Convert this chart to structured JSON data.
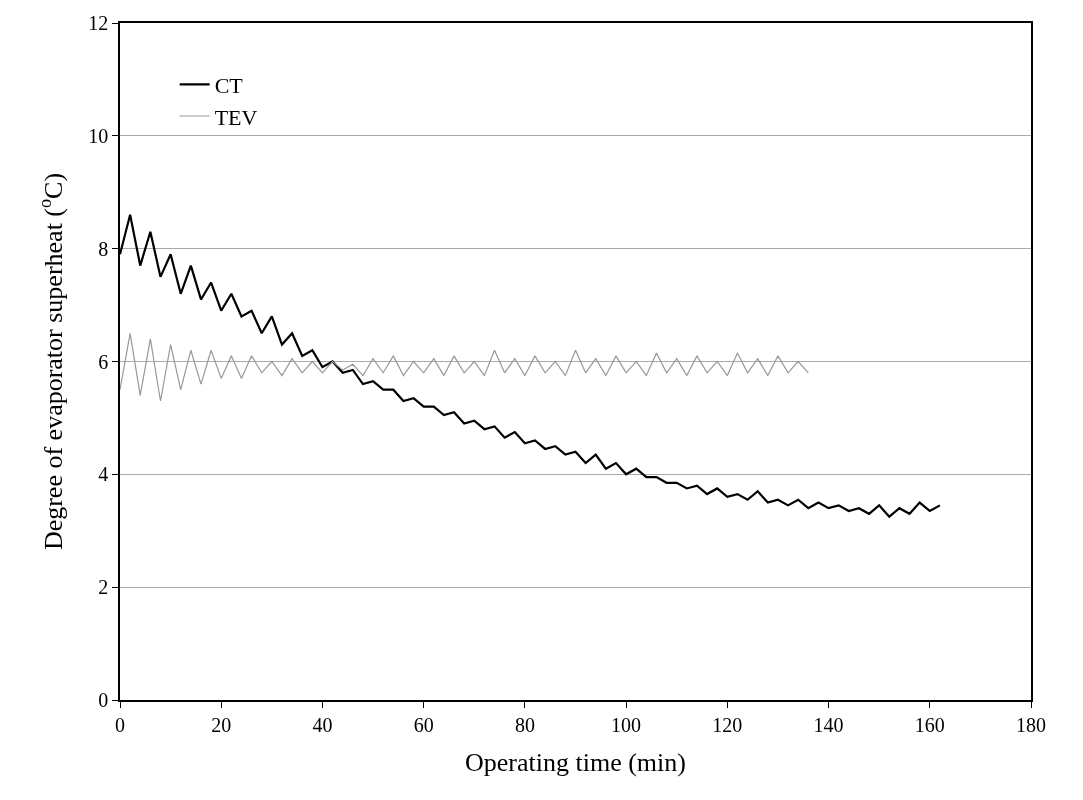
{
  "chart_data": {
    "type": "line",
    "xlabel": "Operating time (min)",
    "ylabel": "Degree of evaporator superheat ($^{o}$C)",
    "xlim": [
      0,
      180
    ],
    "xticks": [
      0,
      20,
      40,
      60,
      80,
      100,
      120,
      140,
      160,
      180
    ],
    "ylim": [
      0,
      12
    ],
    "yticks": [
      0,
      2,
      4,
      6,
      8,
      10,
      12
    ],
    "grid": "y",
    "legend": "top left",
    "marker": "none",
    "line_style": "solid",
    "series": [
      {
        "name": "CT",
        "color": "#000000",
        "x": [
          0,
          2,
          4,
          6,
          8,
          10,
          12,
          14,
          16,
          18,
          20,
          22,
          24,
          26,
          28,
          30,
          32,
          34,
          36,
          38,
          40,
          42,
          44,
          46,
          48,
          50,
          52,
          54,
          56,
          58,
          60,
          62,
          64,
          66,
          68,
          70,
          72,
          74,
          76,
          78,
          80,
          82,
          84,
          86,
          88,
          90,
          92,
          94,
          96,
          98,
          100,
          102,
          104,
          106,
          108,
          110,
          112,
          114,
          116,
          118,
          120,
          122,
          124,
          126,
          128,
          130,
          132,
          134,
          136,
          138,
          140,
          142,
          144,
          146,
          148,
          150,
          152,
          154,
          156,
          158,
          160,
          162
        ],
        "values": [
          7.9,
          8.6,
          7.7,
          8.3,
          7.5,
          7.9,
          7.2,
          7.7,
          7.1,
          7.4,
          6.9,
          7.2,
          6.8,
          6.9,
          6.5,
          6.8,
          6.3,
          6.5,
          6.1,
          6.2,
          5.9,
          6.0,
          5.8,
          5.85,
          5.6,
          5.65,
          5.5,
          5.5,
          5.3,
          5.35,
          5.2,
          5.2,
          5.05,
          5.1,
          4.9,
          4.95,
          4.8,
          4.85,
          4.65,
          4.75,
          4.55,
          4.6,
          4.45,
          4.5,
          4.35,
          4.4,
          4.2,
          4.35,
          4.1,
          4.2,
          4.0,
          4.1,
          3.95,
          3.95,
          3.85,
          3.85,
          3.75,
          3.8,
          3.65,
          3.75,
          3.6,
          3.65,
          3.55,
          3.7,
          3.5,
          3.55,
          3.45,
          3.55,
          3.4,
          3.5,
          3.4,
          3.45,
          3.35,
          3.4,
          3.3,
          3.45,
          3.25,
          3.4,
          3.3,
          3.5,
          3.35,
          3.45
        ]
      },
      {
        "name": "TEV",
        "color": "#999999",
        "x": [
          0,
          2,
          4,
          6,
          8,
          10,
          12,
          14,
          16,
          18,
          20,
          22,
          24,
          26,
          28,
          30,
          32,
          34,
          36,
          38,
          40,
          42,
          44,
          46,
          48,
          50,
          52,
          54,
          56,
          58,
          60,
          62,
          64,
          66,
          68,
          70,
          72,
          74,
          76,
          78,
          80,
          82,
          84,
          86,
          88,
          90,
          92,
          94,
          96,
          98,
          100,
          102,
          104,
          106,
          108,
          110,
          112,
          114,
          116,
          118,
          120,
          122,
          124,
          126,
          128,
          130,
          132,
          134,
          136
        ],
        "values": [
          5.5,
          6.5,
          5.4,
          6.4,
          5.3,
          6.3,
          5.5,
          6.2,
          5.6,
          6.2,
          5.7,
          6.1,
          5.7,
          6.1,
          5.8,
          6.0,
          5.75,
          6.05,
          5.8,
          6.0,
          5.8,
          6.0,
          5.85,
          5.95,
          5.75,
          6.05,
          5.8,
          6.1,
          5.75,
          6.0,
          5.8,
          6.05,
          5.75,
          6.1,
          5.8,
          6.0,
          5.75,
          6.2,
          5.8,
          6.05,
          5.75,
          6.1,
          5.8,
          6.0,
          5.75,
          6.2,
          5.8,
          6.05,
          5.75,
          6.1,
          5.8,
          6.0,
          5.75,
          6.15,
          5.8,
          6.05,
          5.75,
          6.1,
          5.8,
          6.0,
          5.75,
          6.15,
          5.8,
          6.05,
          5.75,
          6.1,
          5.8,
          6.0,
          5.8
        ]
      }
    ]
  }
}
